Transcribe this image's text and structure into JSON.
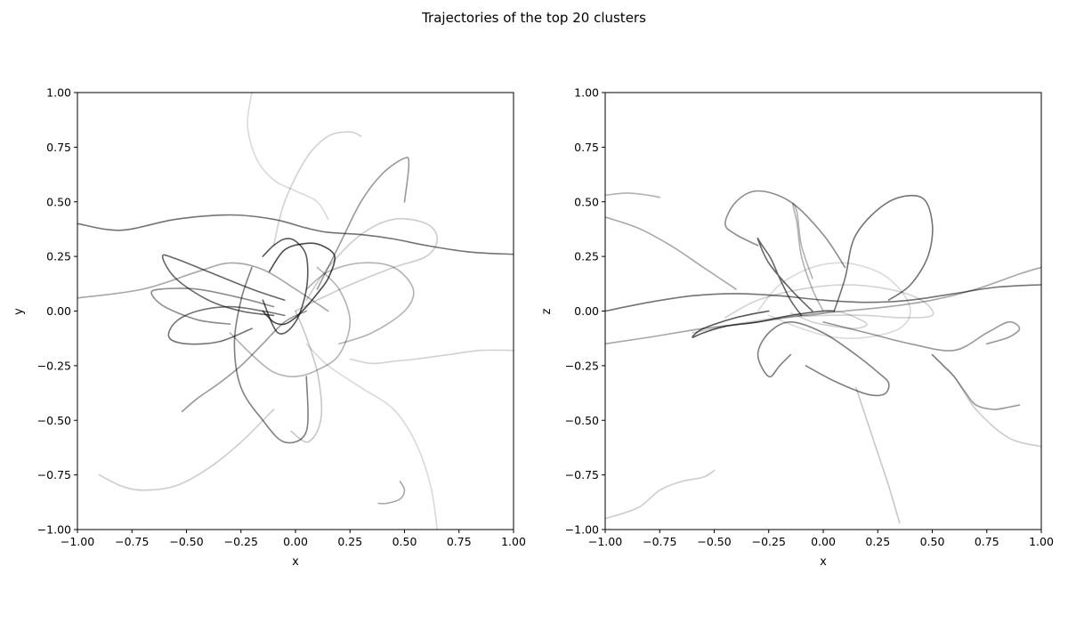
{
  "figure": {
    "title": "Trajectories of the top 20 clusters"
  },
  "chart_data": [
    {
      "type": "line",
      "panel": "left",
      "xlabel": "x",
      "ylabel": "y",
      "xlim": [
        -1.0,
        1.0
      ],
      "ylim": [
        -1.0,
        1.0
      ],
      "xticks": [
        "−1.00",
        "−0.75",
        "−0.50",
        "−0.25",
        "0.00",
        "0.25",
        "0.50",
        "0.75",
        "1.00"
      ],
      "yticks": [
        "−1.00",
        "−0.75",
        "−0.50",
        "−0.25",
        "0.00",
        "0.25",
        "0.50",
        "0.75",
        "1.00"
      ],
      "grid": false,
      "line_color": "#000000",
      "series": [
        {
          "x": [
            -1.0,
            -0.8,
            -0.55,
            -0.3,
            -0.1,
            0.05,
            0.15,
            0.3,
            0.45,
            0.6,
            0.8,
            1.0
          ],
          "y": [
            0.4,
            0.37,
            0.42,
            0.44,
            0.42,
            0.38,
            0.36,
            0.35,
            0.33,
            0.3,
            0.27,
            0.26
          ]
        },
        {
          "x": [
            -1.0,
            -0.7,
            -0.45,
            -0.3,
            -0.15,
            0.0,
            0.15
          ],
          "y": [
            0.06,
            0.1,
            0.18,
            0.22,
            0.19,
            0.1,
            0.0
          ]
        },
        {
          "x": [
            0.25,
            0.35,
            0.45,
            0.55,
            0.7,
            0.85,
            1.0
          ],
          "y": [
            -0.22,
            -0.24,
            -0.23,
            -0.22,
            -0.2,
            -0.18,
            -0.18
          ]
        },
        {
          "x": [
            -0.2,
            -0.25,
            -0.28,
            -0.25,
            -0.15,
            -0.05,
            0.05,
            0.05
          ],
          "y": [
            0.2,
            0.05,
            -0.15,
            -0.35,
            -0.5,
            -0.6,
            -0.55,
            -0.3
          ]
        },
        {
          "x": [
            -0.15,
            -0.1,
            -0.05,
            0.0,
            0.05,
            0.05,
            0.0,
            -0.08,
            -0.15
          ],
          "y": [
            0.25,
            0.3,
            0.33,
            0.32,
            0.25,
            0.1,
            -0.05,
            -0.1,
            0.05
          ]
        },
        {
          "x": [
            0.1,
            0.2,
            0.3,
            0.4,
            0.5,
            0.52,
            0.5
          ],
          "y": [
            0.1,
            0.3,
            0.5,
            0.63,
            0.7,
            0.67,
            0.5
          ]
        },
        {
          "x": [
            0.05,
            0.15,
            0.3,
            0.45,
            0.54,
            0.5,
            0.35,
            0.2
          ],
          "y": [
            0.1,
            0.18,
            0.22,
            0.2,
            0.1,
            0.0,
            -0.1,
            -0.15
          ]
        },
        {
          "x": [
            -0.05,
            -0.2,
            -0.4,
            -0.55,
            -0.61,
            -0.55,
            -0.4,
            -0.25,
            -0.1
          ],
          "y": [
            0.05,
            0.1,
            0.18,
            0.24,
            0.25,
            0.15,
            0.05,
            0.0,
            -0.02
          ]
        },
        {
          "x": [
            -0.1,
            -0.25,
            -0.45,
            -0.62,
            -0.66,
            -0.6,
            -0.45,
            -0.3
          ],
          "y": [
            0.02,
            0.06,
            0.1,
            0.1,
            0.08,
            0.02,
            -0.04,
            -0.06
          ]
        },
        {
          "x": [
            -0.05,
            -0.15,
            -0.3,
            -0.45,
            -0.55,
            -0.58,
            -0.5,
            -0.35,
            -0.2
          ],
          "y": [
            -0.02,
            0.0,
            0.02,
            0.0,
            -0.05,
            -0.12,
            -0.15,
            -0.14,
            -0.08
          ]
        },
        {
          "x": [
            -0.52,
            -0.45,
            -0.35,
            -0.25,
            -0.15,
            -0.05,
            0.05
          ],
          "y": [
            -0.46,
            -0.4,
            -0.33,
            -0.25,
            -0.15,
            -0.05,
            0.0
          ]
        },
        {
          "x": [
            0.0,
            0.1,
            0.25,
            0.45,
            0.6,
            0.65,
            0.6,
            0.45,
            0.3,
            0.15,
            0.05
          ],
          "y": [
            0.0,
            0.05,
            0.12,
            0.2,
            0.25,
            0.33,
            0.4,
            0.42,
            0.35,
            0.2,
            0.05
          ]
        },
        {
          "x": [
            0.0,
            0.05,
            0.1,
            0.12,
            0.1,
            0.05,
            -0.02
          ],
          "y": [
            0.0,
            -0.12,
            -0.28,
            -0.45,
            -0.55,
            -0.6,
            -0.55
          ]
        },
        {
          "x": [
            0.38,
            0.42,
            0.48,
            0.5,
            0.48
          ],
          "y": [
            -0.88,
            -0.88,
            -0.86,
            -0.82,
            -0.78
          ]
        },
        {
          "x": [
            -0.3,
            -0.2,
            -0.1,
            0.0,
            0.1,
            0.2,
            0.25,
            0.2,
            0.1
          ],
          "y": [
            -0.1,
            -0.2,
            -0.28,
            -0.3,
            -0.27,
            -0.2,
            -0.05,
            0.1,
            0.2
          ]
        },
        {
          "x": [
            -0.9,
            -0.8,
            -0.7,
            -0.55,
            -0.4,
            -0.25,
            -0.1
          ],
          "y": [
            -0.75,
            -0.8,
            -0.82,
            -0.8,
            -0.72,
            -0.6,
            -0.45
          ]
        },
        {
          "x": [
            0.3,
            0.25,
            0.15,
            0.05,
            -0.05,
            -0.1
          ],
          "y": [
            0.8,
            0.82,
            0.8,
            0.7,
            0.5,
            0.3
          ]
        },
        {
          "x": [
            -0.2,
            -0.22,
            -0.18,
            -0.1,
            0.0,
            0.1,
            0.15
          ],
          "y": [
            1.0,
            0.85,
            0.7,
            0.6,
            0.55,
            0.5,
            0.42
          ]
        },
        {
          "x": [
            0.65,
            0.62,
            0.55,
            0.45,
            0.3,
            0.15,
            0.05
          ],
          "y": [
            -1.0,
            -0.8,
            -0.6,
            -0.45,
            -0.35,
            -0.25,
            -0.15
          ]
        },
        {
          "x": [
            -0.15,
            -0.1,
            -0.05,
            0.0,
            0.05,
            0.1,
            0.15,
            0.18,
            0.12,
            0.05,
            -0.05,
            -0.12
          ],
          "y": [
            0.0,
            -0.05,
            -0.06,
            -0.03,
            0.02,
            0.08,
            0.15,
            0.25,
            0.3,
            0.31,
            0.28,
            0.18
          ]
        }
      ]
    },
    {
      "type": "line",
      "panel": "right",
      "xlabel": "x",
      "ylabel": "z",
      "xlim": [
        -1.0,
        1.0
      ],
      "ylim": [
        -1.0,
        1.0
      ],
      "xticks": [
        "−1.00",
        "−0.75",
        "−0.50",
        "−0.25",
        "0.00",
        "0.25",
        "0.50",
        "0.75",
        "1.00"
      ],
      "yticks": [
        "−1.00",
        "−0.75",
        "−0.50",
        "−0.25",
        "0.00",
        "0.25",
        "0.50",
        "0.75",
        "1.00"
      ],
      "grid": false,
      "line_color": "#000000",
      "series": [
        {
          "x": [
            -1.0,
            -0.8,
            -0.6,
            -0.4,
            -0.2,
            0.0,
            0.2,
            0.4,
            0.6,
            0.8,
            1.0
          ],
          "y": [
            0.0,
            0.04,
            0.07,
            0.08,
            0.07,
            0.05,
            0.04,
            0.05,
            0.08,
            0.11,
            0.12
          ]
        },
        {
          "x": [
            -1.0,
            -0.8,
            -0.55,
            -0.3,
            -0.1,
            0.1,
            0.3,
            0.5,
            0.7,
            0.9,
            1.0
          ],
          "y": [
            -0.15,
            -0.12,
            -0.08,
            -0.05,
            -0.02,
            0.0,
            0.02,
            0.05,
            0.1,
            0.17,
            0.2
          ]
        },
        {
          "x": [
            -0.6,
            -0.4,
            -0.2,
            0.0,
            0.2,
            0.35,
            0.5,
            0.45,
            0.3,
            0.1,
            -0.1,
            -0.3,
            -0.45
          ],
          "y": [
            -0.1,
            -0.06,
            -0.03,
            -0.02,
            -0.02,
            -0.03,
            -0.02,
            0.05,
            0.1,
            0.12,
            0.1,
            0.05,
            -0.03
          ]
        },
        {
          "x": [
            -0.15,
            -0.2,
            -0.25,
            -0.3,
            -0.25,
            -0.15,
            0.0,
            0.15,
            0.25,
            0.3,
            0.28,
            0.2,
            0.05,
            -0.08
          ],
          "y": [
            -0.2,
            -0.25,
            -0.3,
            -0.2,
            -0.1,
            -0.05,
            -0.1,
            -0.2,
            -0.28,
            -0.33,
            -0.38,
            -0.38,
            -0.32,
            -0.25
          ]
        },
        {
          "x": [
            0.05,
            0.0,
            -0.15,
            -0.3,
            -0.45,
            -0.55,
            -0.6,
            -0.55,
            -0.4,
            -0.25
          ],
          "y": [
            0.0,
            0.0,
            -0.02,
            -0.05,
            -0.07,
            -0.1,
            -0.12,
            -0.08,
            -0.03,
            0.0
          ]
        },
        {
          "x": [
            0.0,
            0.2,
            0.4,
            0.6,
            0.75,
            0.85,
            0.9,
            0.85,
            0.75
          ],
          "y": [
            -0.05,
            -0.1,
            -0.15,
            -0.18,
            -0.1,
            -0.05,
            -0.08,
            -0.12,
            -0.15
          ]
        },
        {
          "x": [
            0.0,
            -0.05,
            -0.1,
            -0.12,
            -0.14,
            -0.12,
            -0.1,
            -0.05
          ],
          "y": [
            0.0,
            0.1,
            0.25,
            0.4,
            0.49,
            0.45,
            0.3,
            0.15
          ]
        },
        {
          "x": [
            -0.1,
            -0.15,
            -0.2,
            -0.24,
            -0.28,
            -0.3,
            -0.25,
            -0.15,
            -0.05
          ],
          "y": [
            -0.02,
            0.05,
            0.15,
            0.24,
            0.3,
            0.33,
            0.22,
            0.1,
            0.0
          ]
        },
        {
          "x": [
            -0.3,
            -0.4,
            -0.45,
            -0.4,
            -0.3,
            -0.15,
            0.0,
            0.1
          ],
          "y": [
            0.3,
            0.35,
            0.4,
            0.5,
            0.55,
            0.5,
            0.35,
            0.2
          ]
        },
        {
          "x": [
            0.05,
            0.1,
            0.15,
            0.3,
            0.45,
            0.5,
            0.48,
            0.4,
            0.3
          ],
          "y": [
            0.0,
            0.15,
            0.35,
            0.5,
            0.52,
            0.4,
            0.25,
            0.12,
            0.05
          ]
        },
        {
          "x": [
            0.5,
            0.55,
            0.6,
            0.65,
            0.7,
            0.78,
            0.85,
            0.9
          ],
          "y": [
            -0.2,
            -0.25,
            -0.3,
            -0.37,
            -0.43,
            -0.45,
            -0.44,
            -0.43
          ]
        },
        {
          "x": [
            -1.0,
            -0.85,
            -0.75,
            -0.65,
            -0.55,
            -0.5
          ],
          "y": [
            -0.95,
            -0.9,
            -0.82,
            -0.78,
            -0.76,
            -0.73
          ]
        },
        {
          "x": [
            0.15,
            0.2,
            0.25,
            0.3,
            0.35
          ],
          "y": [
            -0.35,
            -0.5,
            -0.65,
            -0.8,
            -0.97
          ]
        },
        {
          "x": [
            -1.0,
            -0.85,
            -0.7,
            -0.55,
            -0.4
          ],
          "y": [
            0.43,
            0.38,
            0.3,
            0.2,
            0.1
          ]
        },
        {
          "x": [
            -1.0,
            -0.9,
            -0.8,
            -0.75
          ],
          "y": [
            0.53,
            0.54,
            0.53,
            0.52
          ]
        },
        {
          "x": [
            0.5,
            0.6,
            0.7,
            0.85,
            1.0
          ],
          "y": [
            -0.2,
            -0.3,
            -0.45,
            -0.58,
            -0.62
          ]
        },
        {
          "x": [
            -0.15,
            -0.1,
            -0.05,
            0.0,
            0.05,
            0.1,
            0.15,
            0.2,
            0.15,
            0.05,
            -0.05,
            -0.12
          ],
          "y": [
            -0.01,
            -0.02,
            -0.02,
            -0.01,
            0.0,
            -0.01,
            -0.03,
            -0.06,
            -0.08,
            -0.07,
            -0.05,
            -0.02
          ]
        },
        {
          "x": [
            -0.3,
            -0.2,
            -0.05,
            0.1,
            0.25,
            0.35,
            0.4,
            0.35,
            0.2,
            0.05,
            -0.1,
            -0.25
          ],
          "y": [
            0.0,
            0.12,
            0.2,
            0.22,
            0.18,
            0.1,
            0.0,
            -0.08,
            -0.12,
            -0.12,
            -0.08,
            -0.02
          ]
        }
      ]
    }
  ]
}
